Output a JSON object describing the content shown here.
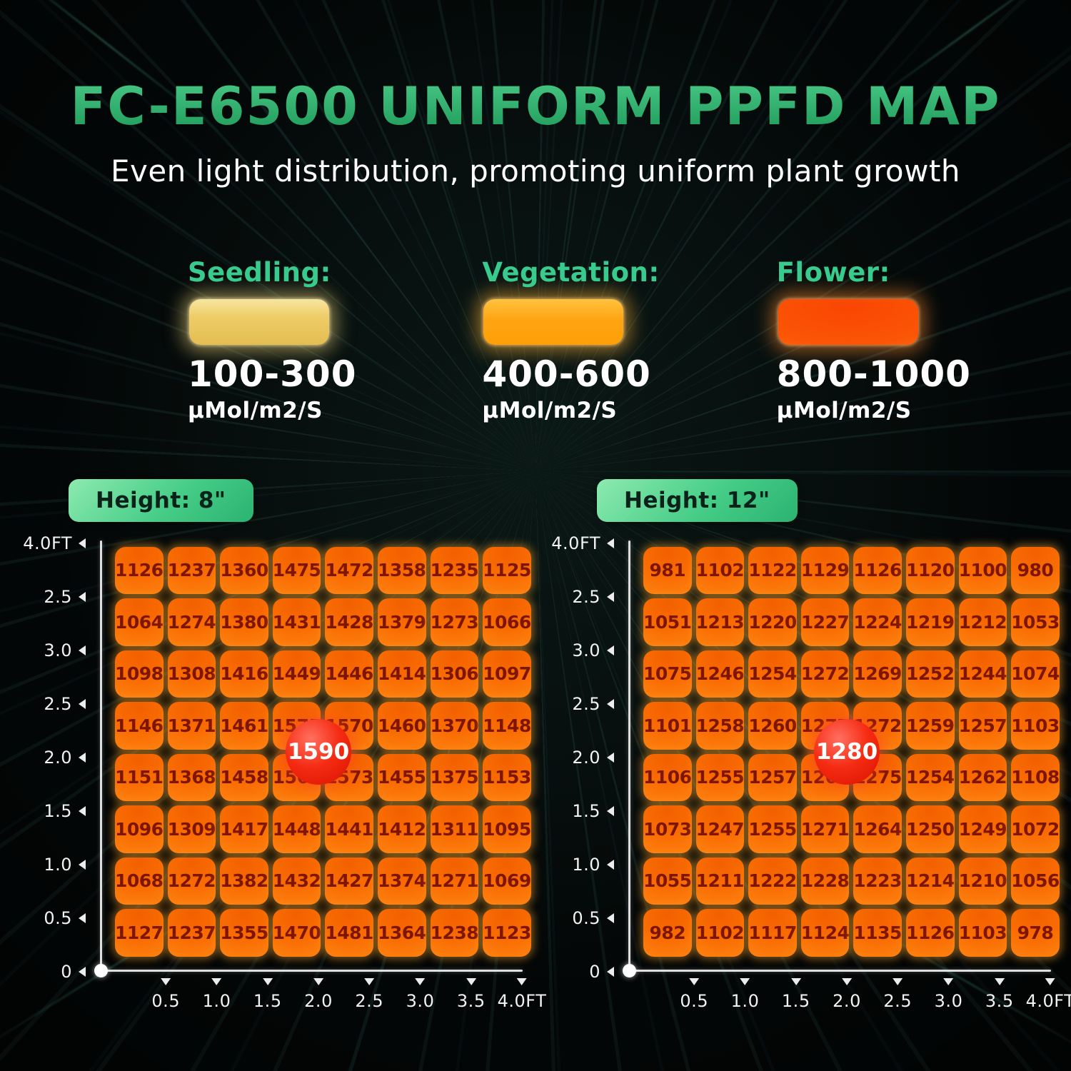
{
  "header": {
    "title": "FC-E6500 UNIFORM PPFD MAP",
    "subtitle": "Even light distribution, promoting uniform plant growth"
  },
  "legend": {
    "items": [
      {
        "stage": "Seedling:",
        "range": "100-300",
        "unit": "µMol/m2/S",
        "swatch_color": "#EECD68"
      },
      {
        "stage": "Vegetation:",
        "range": "400-600",
        "unit": "µMol/m2/S",
        "swatch_color": "#FFA512"
      },
      {
        "stage": "Flower:",
        "range": "800-1000",
        "unit": "µMol/m2/S",
        "swatch_color": "#FB5606"
      }
    ]
  },
  "colors": {
    "title_green_top": "#95ECB5",
    "title_green_bottom": "#1E9A59",
    "accent_green": "#38CB8D",
    "badge_green": "#46CD87",
    "cell_orange": "#F96C02",
    "cell_number": "#7E1501",
    "center_badge_red": "#E91A00",
    "axis_white": "#DEDEDE"
  },
  "chart_data": [
    {
      "type": "heatmap",
      "title": "Height: 8\"",
      "unit": "µMol/m2/S",
      "center_label": "1590",
      "y_ticks": [
        "4.0FT",
        "2.5",
        "3.0",
        "2.5",
        "2.0",
        "1.5",
        "1.0",
        "0.5",
        "0"
      ],
      "x_ticks": [
        "0.5",
        "1.0",
        "1.5",
        "2.0",
        "2.5",
        "3.0",
        "3.5",
        "4.0FT"
      ],
      "rows": [
        [
          1126,
          1237,
          1360,
          1475,
          1472,
          1358,
          1235,
          1125
        ],
        [
          1064,
          1274,
          1380,
          1431,
          1428,
          1379,
          1273,
          1066
        ],
        [
          1098,
          1308,
          1416,
          1449,
          1446,
          1414,
          1306,
          1097
        ],
        [
          1146,
          1371,
          1461,
          1575,
          1570,
          1460,
          1370,
          1148
        ],
        [
          1151,
          1368,
          1458,
          1567,
          1573,
          1455,
          1375,
          1153
        ],
        [
          1096,
          1309,
          1417,
          1448,
          1441,
          1412,
          1311,
          1095
        ],
        [
          1068,
          1272,
          1382,
          1432,
          1427,
          1374,
          1271,
          1069
        ],
        [
          1127,
          1237,
          1355,
          1470,
          1481,
          1364,
          1238,
          1123
        ]
      ]
    },
    {
      "type": "heatmap",
      "title": "Height: 12\"",
      "unit": "µMol/m2/S",
      "center_label": "1280",
      "y_ticks": [
        "4.0FT",
        "2.5",
        "3.0",
        "2.5",
        "2.0",
        "1.5",
        "1.0",
        "0.5",
        "0"
      ],
      "x_ticks": [
        "0.5",
        "1.0",
        "1.5",
        "2.0",
        "2.5",
        "3.0",
        "3.5",
        "4.0FT"
      ],
      "rows": [
        [
          981,
          1102,
          1122,
          1129,
          1126,
          1120,
          1100,
          980
        ],
        [
          1051,
          1213,
          1220,
          1227,
          1224,
          1219,
          1212,
          1053
        ],
        [
          1075,
          1246,
          1254,
          1272,
          1269,
          1252,
          1244,
          1074
        ],
        [
          1101,
          1258,
          1260,
          1277,
          1272,
          1259,
          1257,
          1103
        ],
        [
          1106,
          1255,
          1257,
          1269,
          1275,
          1254,
          1262,
          1108
        ],
        [
          1073,
          1247,
          1255,
          1271,
          1264,
          1250,
          1249,
          1072
        ],
        [
          1055,
          1211,
          1222,
          1228,
          1223,
          1214,
          1210,
          1056
        ],
        [
          982,
          1102,
          1117,
          1124,
          1135,
          1126,
          1103,
          978
        ]
      ]
    }
  ]
}
